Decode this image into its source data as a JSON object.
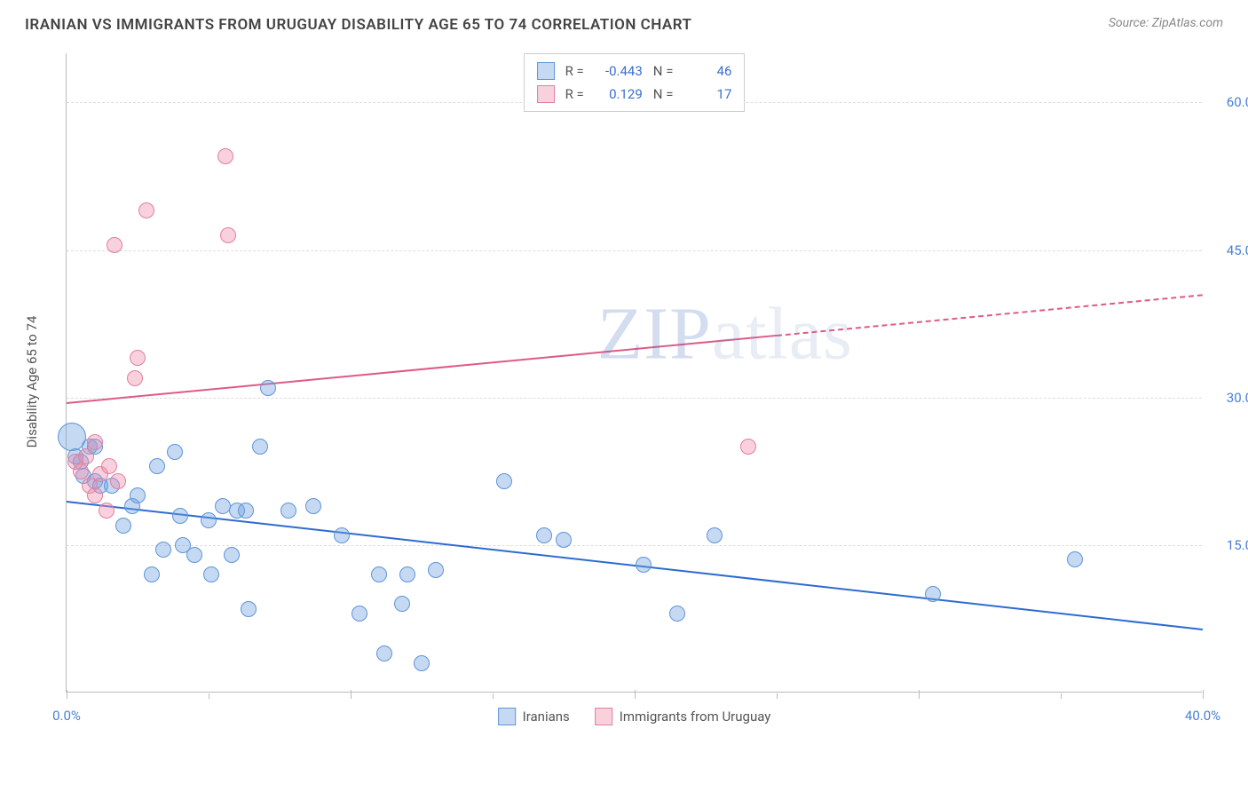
{
  "header": {
    "title": "IRANIAN VS IMMIGRANTS FROM URUGUAY DISABILITY AGE 65 TO 74 CORRELATION CHART",
    "source": "Source: ZipAtlas.com"
  },
  "watermark": {
    "t1": "ZIP",
    "t2": "atlas"
  },
  "chart": {
    "type": "scatter",
    "yaxis_title": "Disability Age 65 to 74",
    "background_color": "#ffffff",
    "grid_color": "#dddddd",
    "axis_color": "#bbbbbb",
    "tick_label_color": "#4a80d6",
    "xlim": [
      0,
      40
    ],
    "ylim": [
      0,
      65
    ],
    "x_ticks_major": [
      0,
      10,
      20,
      30,
      40
    ],
    "x_tick_labels": {
      "0": "0.0%",
      "40": "40.0%"
    },
    "x_ticks_minor": [
      5,
      15,
      25,
      35
    ],
    "y_ticks": [
      15,
      30,
      45,
      60
    ],
    "y_tick_labels": {
      "15": "15.0%",
      "30": "30.0%",
      "45": "45.0%",
      "60": "60.0%"
    },
    "point_radius": 9,
    "point_border_width": 1.5,
    "point_fill_opacity": 0.35,
    "series": [
      {
        "id": "iranians",
        "name": "Iranians",
        "color_fill": "rgba(110,160,225,0.40)",
        "color_stroke": "#5f94d8",
        "trend_color": "#2d6bd0",
        "R": "-0.443",
        "N": "46",
        "trend": {
          "x1": 0,
          "y1": 19.5,
          "x2": 40,
          "y2": 6.5,
          "dash": false
        },
        "points": [
          {
            "x": 0.2,
            "y": 26.0,
            "r": 16
          },
          {
            "x": 0.3,
            "y": 24.0
          },
          {
            "x": 0.5,
            "y": 23.5
          },
          {
            "x": 0.8,
            "y": 25.0
          },
          {
            "x": 0.6,
            "y": 22.0
          },
          {
            "x": 1.0,
            "y": 21.5
          },
          {
            "x": 1.2,
            "y": 21.0
          },
          {
            "x": 1.0,
            "y": 25.0
          },
          {
            "x": 2.0,
            "y": 17.0
          },
          {
            "x": 2.3,
            "y": 19.0
          },
          {
            "x": 2.5,
            "y": 20.0
          },
          {
            "x": 3.0,
            "y": 12.0
          },
          {
            "x": 3.4,
            "y": 14.5
          },
          {
            "x": 3.8,
            "y": 24.5
          },
          {
            "x": 4.0,
            "y": 18.0
          },
          {
            "x": 4.1,
            "y": 15.0
          },
          {
            "x": 4.5,
            "y": 14.0
          },
          {
            "x": 5.0,
            "y": 17.5
          },
          {
            "x": 5.1,
            "y": 12.0
          },
          {
            "x": 5.5,
            "y": 19.0
          },
          {
            "x": 5.8,
            "y": 14.0
          },
          {
            "x": 6.0,
            "y": 18.5
          },
          {
            "x": 6.3,
            "y": 18.5
          },
          {
            "x": 6.4,
            "y": 8.5
          },
          {
            "x": 6.8,
            "y": 25.0
          },
          {
            "x": 7.1,
            "y": 31.0
          },
          {
            "x": 7.8,
            "y": 18.5
          },
          {
            "x": 8.7,
            "y": 19.0
          },
          {
            "x": 9.7,
            "y": 16.0
          },
          {
            "x": 10.3,
            "y": 8.0
          },
          {
            "x": 11.0,
            "y": 12.0
          },
          {
            "x": 11.2,
            "y": 4.0
          },
          {
            "x": 11.8,
            "y": 9.0
          },
          {
            "x": 12.0,
            "y": 12.0
          },
          {
            "x": 12.5,
            "y": 3.0
          },
          {
            "x": 13.0,
            "y": 12.5
          },
          {
            "x": 15.4,
            "y": 21.5
          },
          {
            "x": 16.8,
            "y": 16.0
          },
          {
            "x": 17.5,
            "y": 15.5
          },
          {
            "x": 20.3,
            "y": 13.0
          },
          {
            "x": 21.5,
            "y": 8.0
          },
          {
            "x": 22.8,
            "y": 16.0
          },
          {
            "x": 30.5,
            "y": 10.0
          },
          {
            "x": 35.5,
            "y": 13.5
          },
          {
            "x": 1.6,
            "y": 21.0
          },
          {
            "x": 3.2,
            "y": 23.0
          }
        ]
      },
      {
        "id": "uruguay",
        "name": "Immigrants from Uruguay",
        "color_fill": "rgba(240,140,170,0.40)",
        "color_stroke": "#e07fa0",
        "trend_color": "#de5a86",
        "R": "0.129",
        "N": "17",
        "trend": {
          "x1": 0,
          "y1": 29.5,
          "x2": 40,
          "y2": 40.5,
          "dash_after_x": 25
        },
        "points": [
          {
            "x": 0.3,
            "y": 23.5
          },
          {
            "x": 0.5,
            "y": 22.5
          },
          {
            "x": 0.7,
            "y": 24.0
          },
          {
            "x": 0.8,
            "y": 21.0
          },
          {
            "x": 1.0,
            "y": 25.5
          },
          {
            "x": 1.0,
            "y": 20.0
          },
          {
            "x": 1.2,
            "y": 22.2
          },
          {
            "x": 1.4,
            "y": 18.5
          },
          {
            "x": 1.5,
            "y": 23.0
          },
          {
            "x": 1.8,
            "y": 21.5
          },
          {
            "x": 1.7,
            "y": 45.5
          },
          {
            "x": 2.5,
            "y": 34.0
          },
          {
            "x": 2.4,
            "y": 32.0
          },
          {
            "x": 2.8,
            "y": 49.0
          },
          {
            "x": 5.6,
            "y": 54.5
          },
          {
            "x": 5.7,
            "y": 46.5
          },
          {
            "x": 24.0,
            "y": 25.0
          }
        ]
      }
    ],
    "legend_top": {
      "r_label": "R =",
      "n_label": "N ="
    },
    "legend_bottom": {
      "items": [
        "Iranians",
        "Immigrants from Uruguay"
      ]
    }
  }
}
